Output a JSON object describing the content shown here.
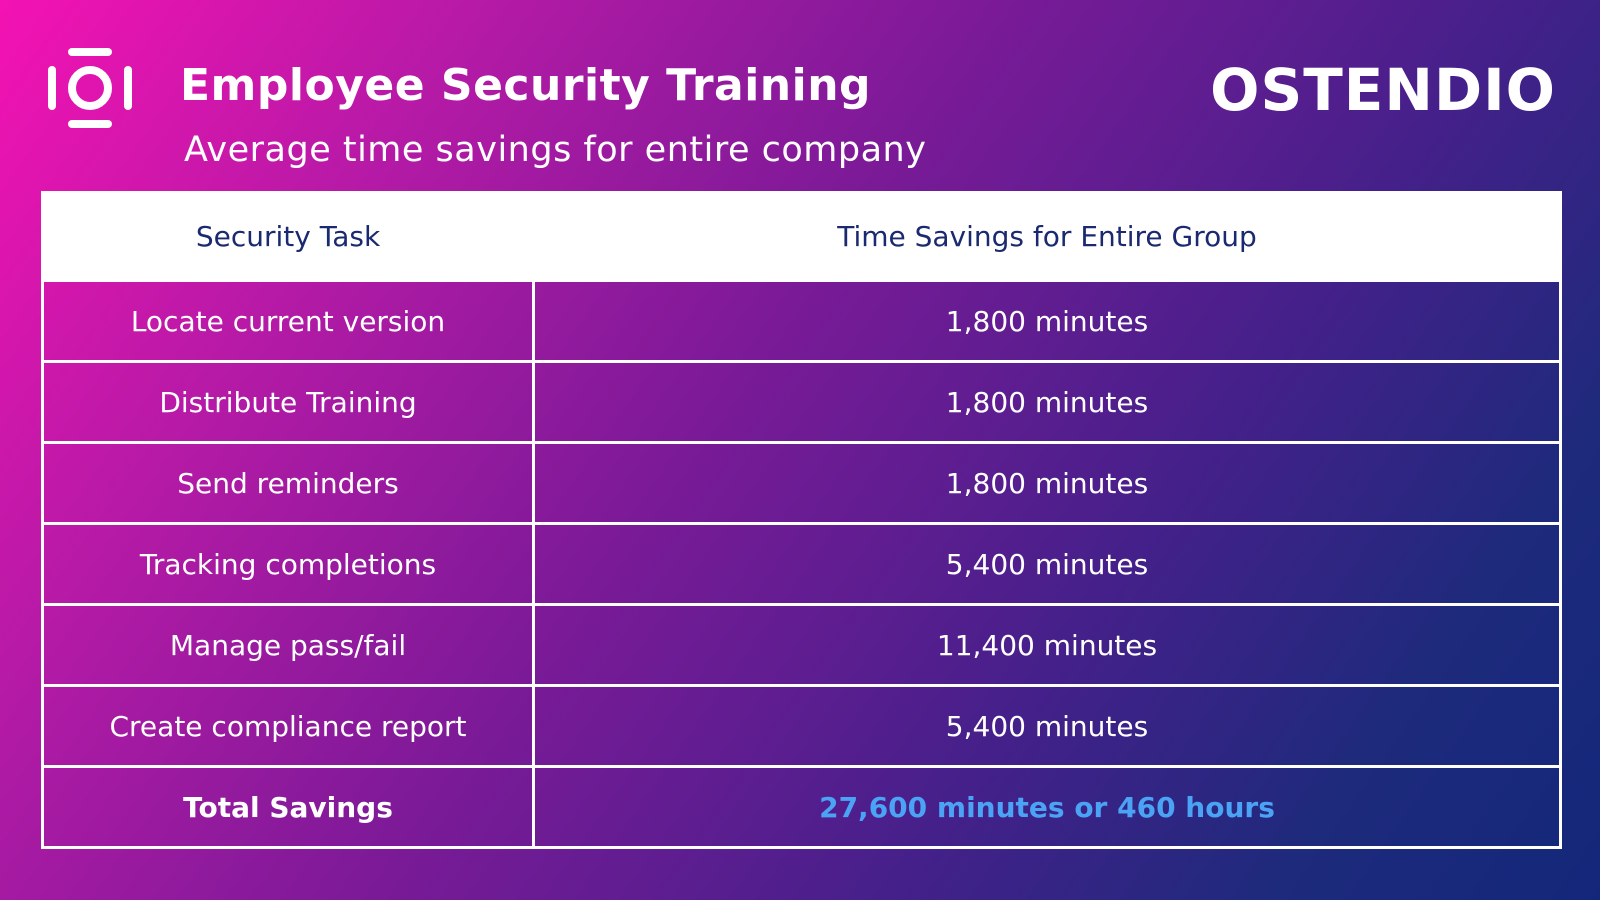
{
  "header": {
    "title": "Employee Security Training",
    "subtitle": "Average time savings for entire company",
    "brand": "OSTENDIO",
    "logo_icon": "ostendio-logo-icon"
  },
  "table": {
    "headers": [
      "Security Task",
      "Time Savings for Entire Group"
    ],
    "rows": [
      {
        "task": "Locate current version",
        "savings": "1,800 minutes"
      },
      {
        "task": "Distribute Training",
        "savings": "1,800 minutes"
      },
      {
        "task": "Send reminders",
        "savings": "1,800 minutes"
      },
      {
        "task": "Tracking completions",
        "savings": "5,400 minutes"
      },
      {
        "task": "Manage pass/fail",
        "savings": "11,400 minutes"
      },
      {
        "task": "Create compliance report",
        "savings": "5,400 minutes"
      }
    ],
    "total": {
      "label": "Total Savings",
      "value": "27,600 minutes or 460 hours"
    }
  },
  "colors": {
    "gradient_start": "#f412b3",
    "gradient_end": "#13277a",
    "header_text": "#1b2a70",
    "total_value": "#4aa3f5"
  }
}
